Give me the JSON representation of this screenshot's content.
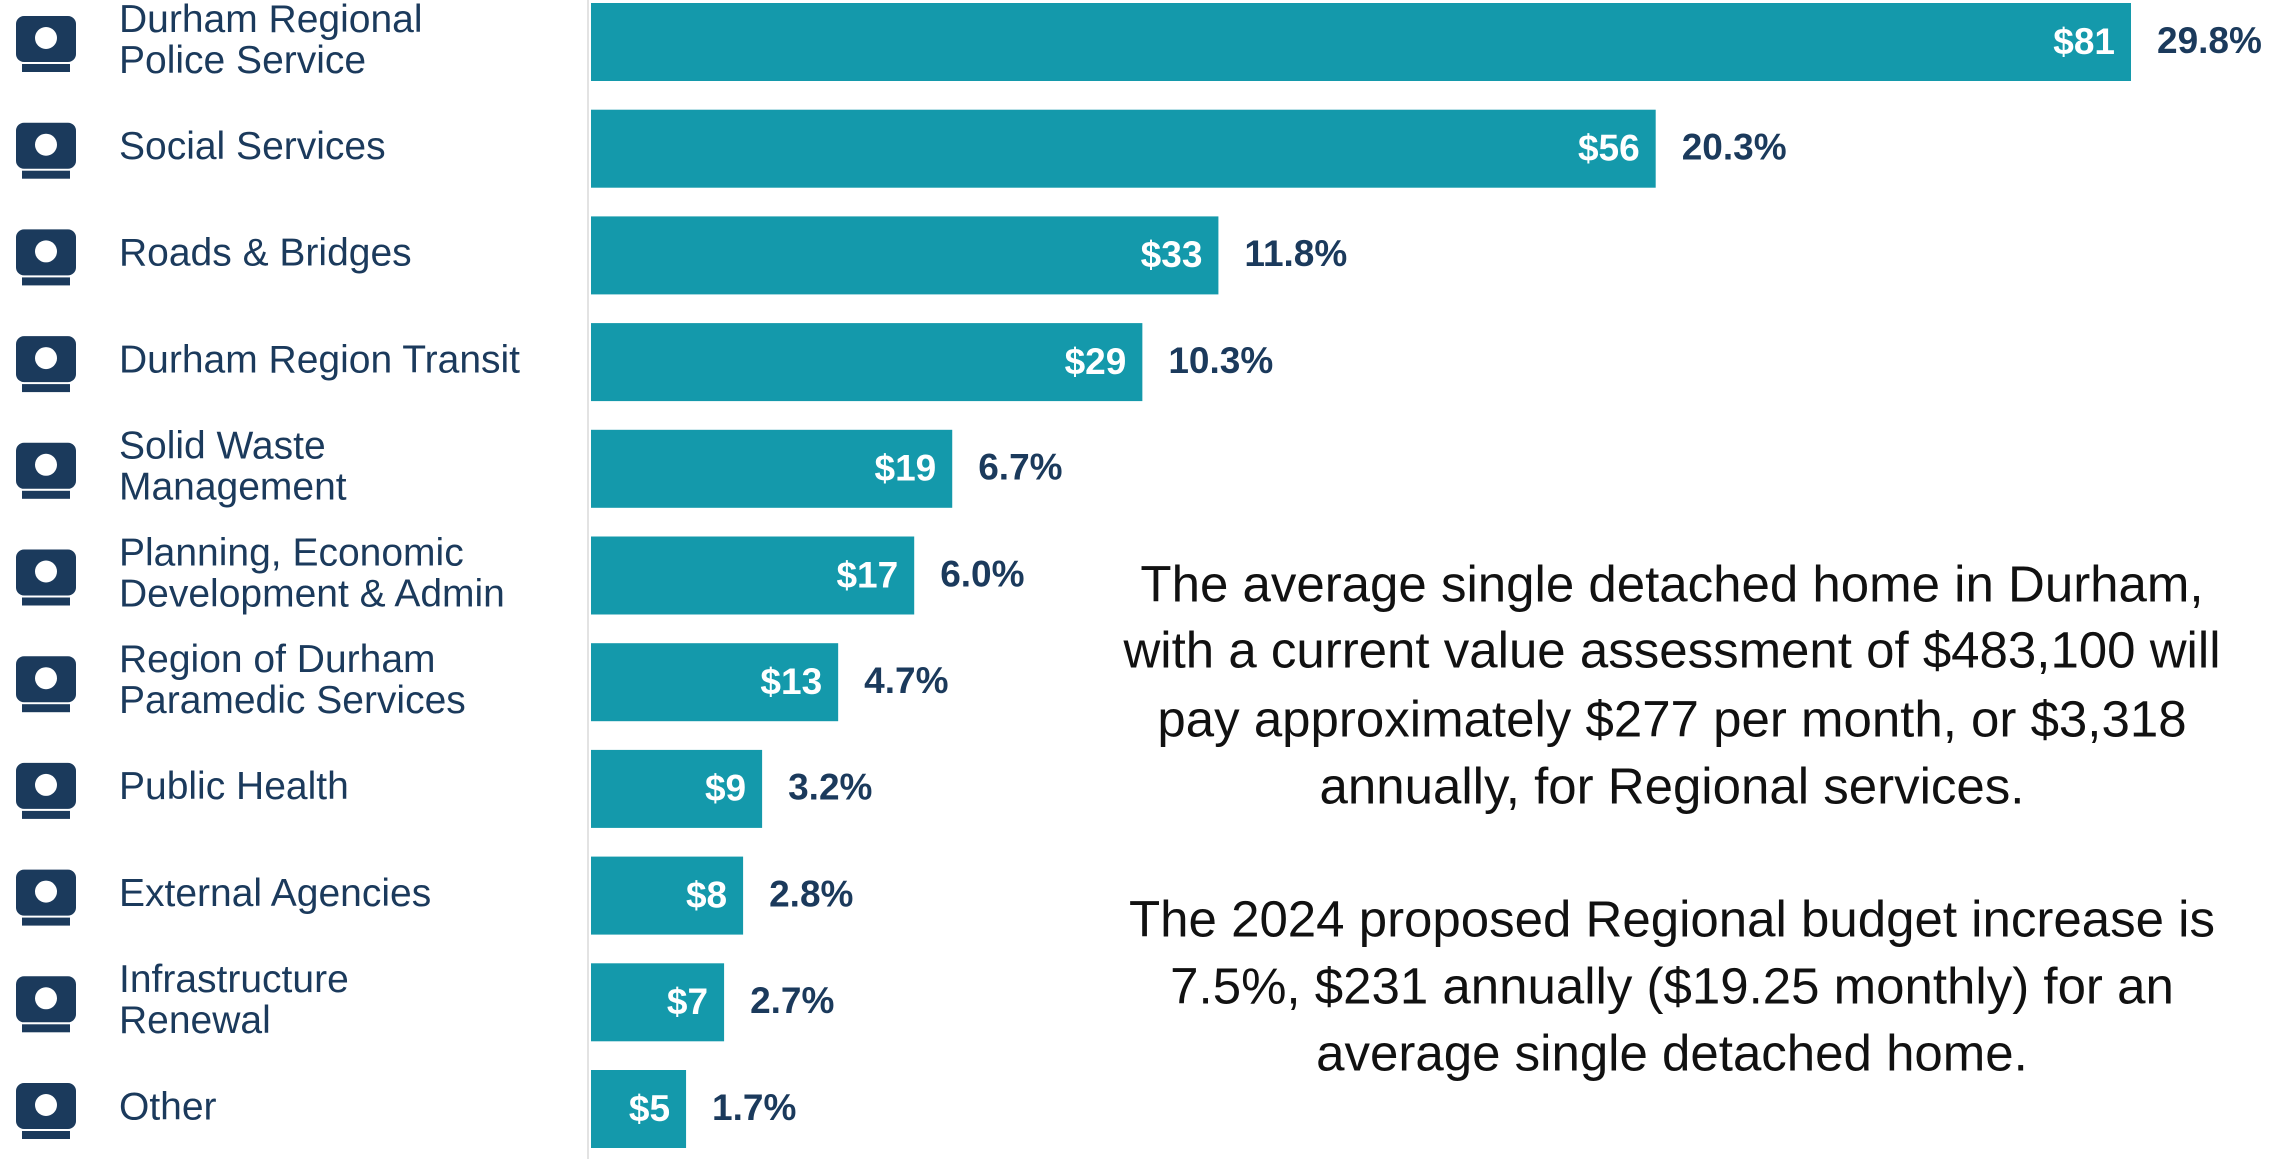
{
  "chart_data": {
    "type": "barh",
    "categories": [
      [
        "Durham Regional",
        "Police Service"
      ],
      [
        "Social Services"
      ],
      [
        "Roads & Bridges"
      ],
      [
        "Durham Region Transit"
      ],
      [
        "Solid Waste",
        "Management"
      ],
      [
        "Planning, Economic",
        "Development & Admin"
      ],
      [
        "Region of Durham",
        "Paramedic Services"
      ],
      [
        "Public Health"
      ],
      [
        "External Agencies"
      ],
      [
        "Infrastructure",
        "Renewal"
      ],
      [
        "Other"
      ]
    ],
    "values": [
      81,
      56,
      33,
      29,
      19,
      17,
      13,
      9,
      8,
      7,
      5
    ],
    "value_labels": [
      "$81",
      "$56",
      "$33",
      "$29",
      "$19",
      "$17",
      "$13",
      "$9",
      "$8",
      "$7",
      "$5"
    ],
    "shares": [
      29.8,
      20.3,
      11.8,
      10.3,
      6.7,
      6.0,
      4.7,
      3.2,
      2.8,
      2.7,
      1.7
    ],
    "share_labels": [
      "29.8%",
      "20.3%",
      "11.8%",
      "10.3%",
      "6.7%",
      "6.0%",
      "4.7%",
      "3.2%",
      "2.8%",
      "2.7%",
      "1.7%"
    ],
    "color": "#1499ab",
    "xlim": [
      0,
      81
    ],
    "annotations": [
      [
        "The average single detached home in Durham,",
        "with a current value assessment of $483,100 will",
        "pay approximately $277 per month, or $3,318",
        "annually, for Regional services."
      ],
      [
        "The 2024 proposed Regional budget increase is",
        "7.5%, $231 annually ($19.25 monthly) for an",
        "average single detached home."
      ]
    ]
  }
}
